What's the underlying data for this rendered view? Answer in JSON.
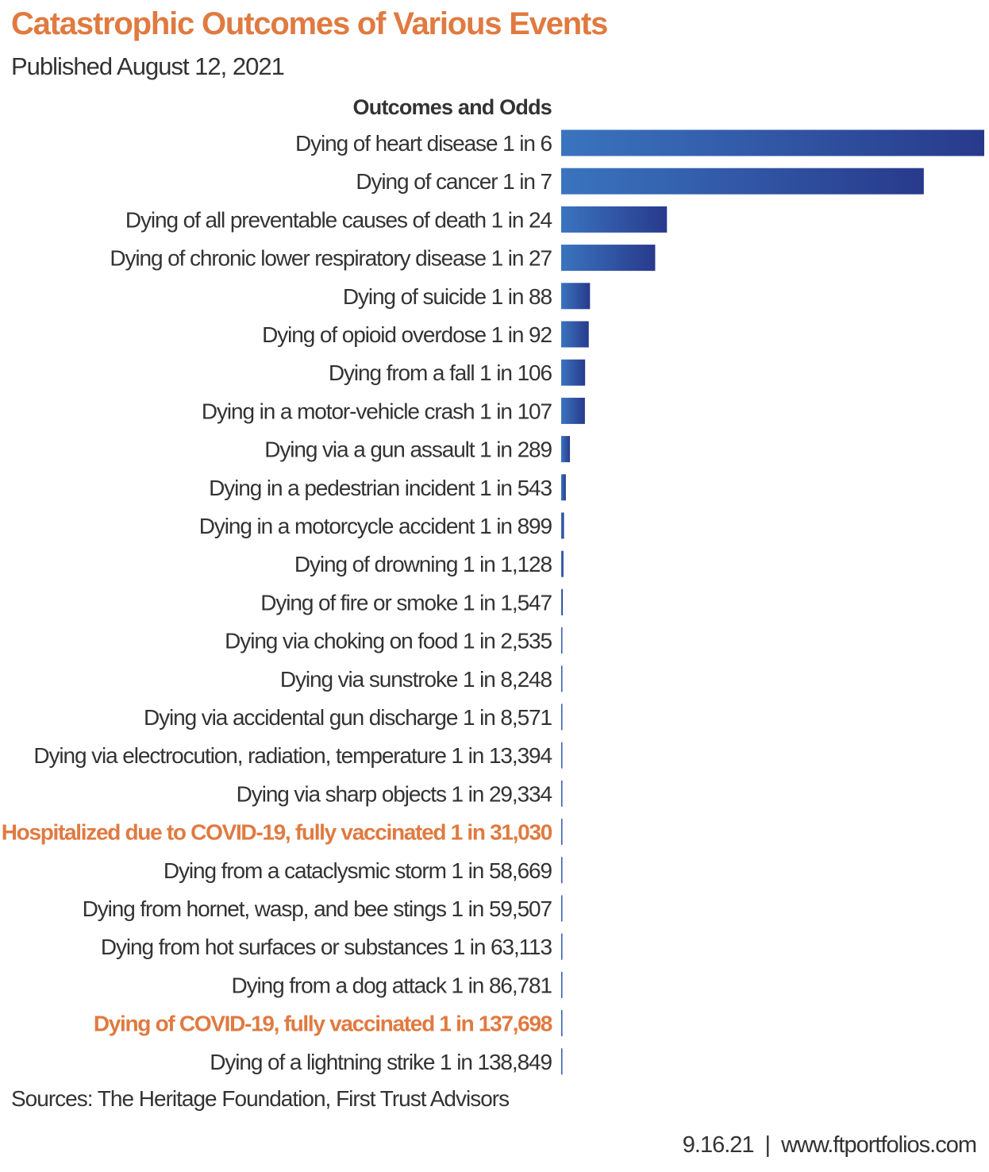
{
  "colors": {
    "title": "#e07a40",
    "highlight": "#e07a40",
    "text": "#333333",
    "bar_light": "#3a74be",
    "bar_dark": "#283a8c"
  },
  "header": {
    "title": "Catastrophic Outcomes of Various Events",
    "subtitle": "Published August 12, 2021"
  },
  "chart_data": {
    "type": "bar",
    "orientation": "horizontal",
    "title": "Outcomes and Odds",
    "categories": [
      "Dying of heart disease 1 in 6",
      "Dying of cancer 1 in 7",
      "Dying of all preventable causes of death 1 in 24",
      "Dying of chronic lower respiratory disease 1 in 27",
      "Dying of suicide 1 in 88",
      "Dying of opioid overdose 1 in 92",
      "Dying from a fall 1 in 106",
      "Dying in a motor-vehicle crash 1 in 107",
      "Dying via a gun assault 1 in 289",
      "Dying in a pedestrian incident 1 in 543",
      "Dying in a motorcycle accident 1 in 899",
      "Dying of drowning 1 in 1,128",
      "Dying of fire or smoke 1 in 1,547",
      "Dying via choking on food 1 in 2,535",
      "Dying via sunstroke 1 in 8,248",
      "Dying via accidental gun discharge 1 in 8,571",
      "Dying via electrocution, radiation, temperature 1 in 13,394",
      "Dying via sharp objects 1 in 29,334",
      "Hospitalized due to COVID-19, fully vaccinated 1 in 31,030",
      "Dying from a cataclysmic storm 1 in 58,669",
      "Dying from hornet, wasp, and bee stings 1 in 59,507",
      "Dying from hot surfaces or substances 1 in 63,113",
      "Dying from a dog attack 1 in 86,781",
      "Dying of COVID-19, fully vaccinated 1 in 137,698",
      "Dying of a lightning strike 1 in 138,849"
    ],
    "odds": [
      6,
      7,
      24,
      27,
      88,
      92,
      106,
      107,
      289,
      543,
      899,
      1128,
      1547,
      2535,
      8248,
      8571,
      13394,
      29334,
      31030,
      58669,
      59507,
      63113,
      86781,
      137698,
      138849
    ],
    "values": [
      0.16667,
      0.14286,
      0.04167,
      0.03704,
      0.01136,
      0.01087,
      0.00943,
      0.00935,
      0.00346,
      0.00184,
      0.00111,
      0.00089,
      0.00065,
      0.00039,
      0.00012,
      0.00012,
      7.5e-05,
      3.4e-05,
      3.2e-05,
      1.7e-05,
      1.7e-05,
      1.6e-05,
      1.2e-05,
      7.3e-06,
      7.2e-06
    ],
    "highlighted": [
      false,
      false,
      false,
      false,
      false,
      false,
      false,
      false,
      false,
      false,
      false,
      false,
      false,
      false,
      false,
      false,
      false,
      false,
      true,
      false,
      false,
      false,
      false,
      true,
      false
    ],
    "xlabel": "",
    "ylabel": "",
    "xlim": [
      0,
      0.16667
    ],
    "legend": "none",
    "grid": false
  },
  "footer": {
    "source": "Sources: The Heritage Foundation, First Trust Advisors",
    "date": "9.16.21",
    "separator": "|",
    "website": "www.ftportfolios.com"
  }
}
